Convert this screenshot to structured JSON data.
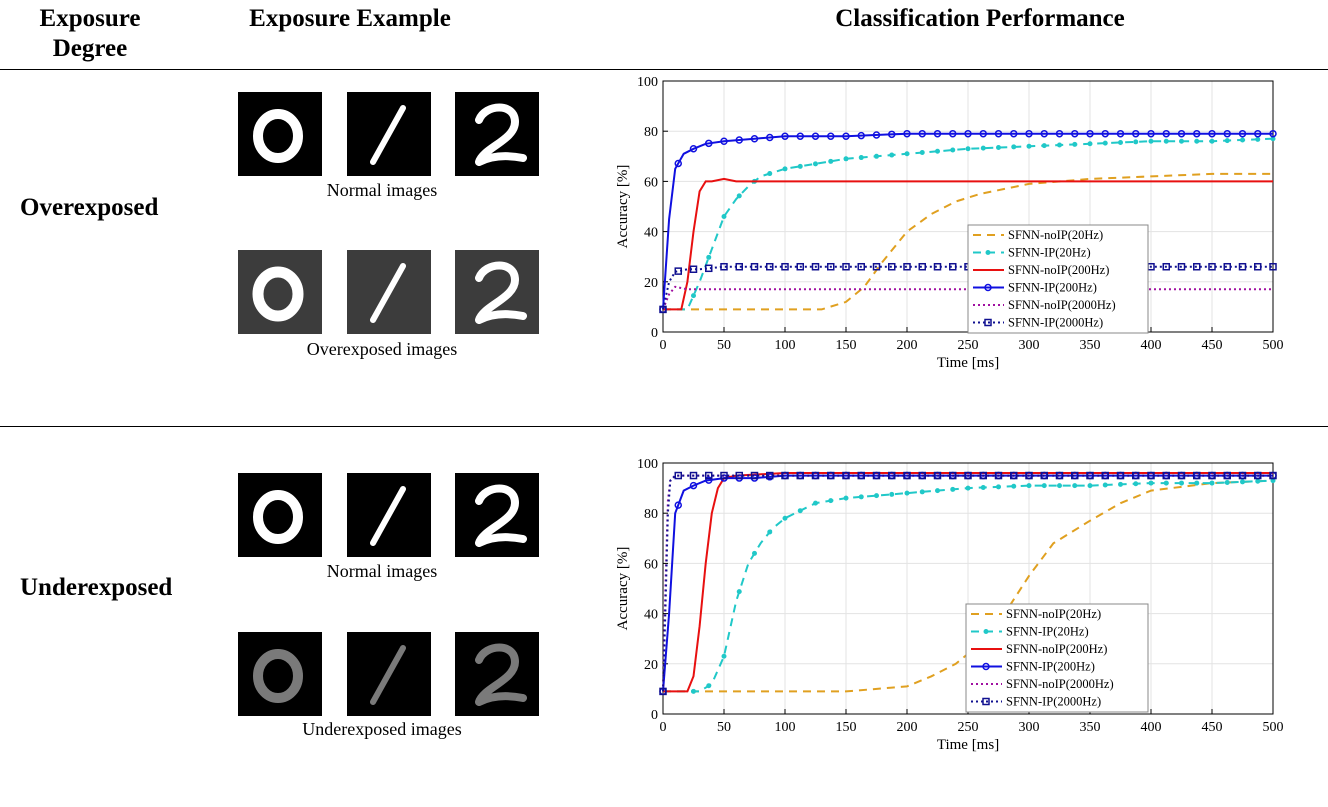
{
  "headers": {
    "col1": "Exposure Degree",
    "col1_line1": "Exposure",
    "col1_line2": "Degree",
    "col2": "Exposure Example",
    "col3": "Classification Performance"
  },
  "rows": [
    {
      "label": "Overexposed",
      "normal_caption": "Normal images",
      "exposed_caption": "Overexposed images",
      "digits": [
        "0",
        "1",
        "2"
      ]
    },
    {
      "label": "Underexposed",
      "normal_caption": "Normal images",
      "exposed_caption": "Underexposed images",
      "digits": [
        "0",
        "1",
        "2"
      ]
    }
  ],
  "chart_data": [
    {
      "type": "line",
      "xlabel": "Time [ms]",
      "ylabel": "Accuracy [%]",
      "xlim": [
        0,
        500
      ],
      "ylim": [
        0,
        100
      ],
      "xticks": [
        0,
        50,
        100,
        150,
        200,
        250,
        300,
        350,
        400,
        450,
        500
      ],
      "yticks": [
        0,
        20,
        40,
        60,
        80,
        100
      ],
      "grid": true,
      "legend_position": "center-right",
      "series": [
        {
          "name": "SFNN-noIP(20Hz)",
          "color": "#E0A020",
          "dash": "8,6",
          "marker": "none",
          "x": [
            0,
            20,
            50,
            100,
            130,
            150,
            165,
            180,
            200,
            220,
            240,
            260,
            280,
            300,
            350,
            400,
            450,
            500
          ],
          "y": [
            9,
            9,
            9,
            9,
            9,
            12,
            18,
            28,
            40,
            47,
            52,
            55,
            57,
            59,
            61,
            62,
            63,
            63
          ]
        },
        {
          "name": "SFNN-IP(20Hz)",
          "color": "#20C8C8",
          "dash": "8,6",
          "marker": "dot",
          "x": [
            0,
            20,
            30,
            40,
            50,
            60,
            70,
            80,
            100,
            125,
            150,
            200,
            250,
            300,
            350,
            400,
            450,
            500
          ],
          "y": [
            9,
            9,
            20,
            33,
            46,
            53,
            58,
            62,
            65,
            67,
            69,
            71,
            73,
            74,
            75,
            76,
            76,
            77
          ]
        },
        {
          "name": "SFNN-noIP(200Hz)",
          "color": "#E81010",
          "dash": "",
          "marker": "none",
          "x": [
            0,
            15,
            20,
            25,
            30,
            35,
            40,
            50,
            60,
            100,
            150,
            200,
            250,
            300,
            350,
            400,
            450,
            500
          ],
          "y": [
            9,
            9,
            20,
            40,
            56,
            60,
            60,
            61,
            60,
            60,
            60,
            60,
            60,
            60,
            60,
            60,
            60,
            60
          ]
        },
        {
          "name": "SFNN-IP(200Hz)",
          "color": "#1010E0",
          "dash": "",
          "marker": "circle",
          "x": [
            0,
            5,
            10,
            17,
            25,
            35,
            50,
            75,
            100,
            150,
            200,
            250,
            300,
            350,
            400,
            450,
            500
          ],
          "y": [
            9,
            45,
            65,
            71,
            73,
            75,
            76,
            77,
            78,
            78,
            79,
            79,
            79,
            79,
            79,
            79,
            79
          ]
        },
        {
          "name": "SFNN-noIP(2000Hz)",
          "color": "#A010A0",
          "dash": "2,3",
          "marker": "none",
          "x": [
            0,
            5,
            10,
            20,
            50,
            100,
            150,
            200,
            250,
            300,
            350,
            400,
            450,
            500
          ],
          "y": [
            9,
            15,
            18,
            17,
            17,
            17,
            17,
            17,
            17,
            17,
            17,
            17,
            17,
            17
          ]
        },
        {
          "name": "SFNN-IP(2000Hz)",
          "color": "#101090",
          "dash": "2,3",
          "marker": "square",
          "x": [
            0,
            5,
            10,
            20,
            30,
            50,
            100,
            150,
            200,
            250,
            300,
            350,
            400,
            450,
            500
          ],
          "y": [
            9,
            20,
            24,
            25,
            25,
            26,
            26,
            26,
            26,
            26,
            26,
            26,
            26,
            26,
            26
          ]
        }
      ]
    },
    {
      "type": "line",
      "xlabel": "Time [ms]",
      "ylabel": "Accuracy [%]",
      "xlim": [
        0,
        500
      ],
      "ylim": [
        0,
        100
      ],
      "xticks": [
        0,
        50,
        100,
        150,
        200,
        250,
        300,
        350,
        400,
        450,
        500
      ],
      "yticks": [
        0,
        20,
        40,
        60,
        80,
        100
      ],
      "grid": true,
      "legend_position": "bottom-right",
      "series": [
        {
          "name": "SFNN-noIP(20Hz)",
          "color": "#E0A020",
          "dash": "8,6",
          "marker": "none",
          "x": [
            0,
            20,
            50,
            100,
            150,
            200,
            220,
            240,
            260,
            280,
            300,
            320,
            350,
            375,
            400,
            450,
            500
          ],
          "y": [
            9,
            9,
            9,
            9,
            9,
            11,
            15,
            20,
            28,
            40,
            55,
            68,
            77,
            84,
            89,
            92,
            93
          ]
        },
        {
          "name": "SFNN-IP(20Hz)",
          "color": "#20C8C8",
          "dash": "8,6",
          "marker": "dot",
          "x": [
            0,
            20,
            30,
            40,
            50,
            60,
            70,
            80,
            90,
            100,
            125,
            150,
            200,
            250,
            300,
            350,
            400,
            450,
            500
          ],
          "y": [
            9,
            9,
            9,
            12,
            23,
            45,
            60,
            68,
            74,
            78,
            84,
            86,
            88,
            90,
            91,
            91,
            92,
            92,
            93
          ]
        },
        {
          "name": "SFNN-noIP(200Hz)",
          "color": "#E81010",
          "dash": "",
          "marker": "none",
          "x": [
            0,
            20,
            25,
            30,
            35,
            40,
            45,
            50,
            60,
            100,
            200,
            300,
            400,
            500
          ],
          "y": [
            9,
            9,
            15,
            35,
            60,
            80,
            90,
            94,
            95,
            96,
            96,
            96,
            96,
            96
          ]
        },
        {
          "name": "SFNN-IP(200Hz)",
          "color": "#1010E0",
          "dash": "",
          "marker": "circle",
          "x": [
            0,
            5,
            10,
            17,
            25,
            35,
            50,
            75,
            100,
            150,
            200,
            250,
            300,
            350,
            400,
            450,
            500
          ],
          "y": [
            9,
            40,
            80,
            89,
            91,
            93,
            94,
            94,
            95,
            95,
            95,
            95,
            95,
            95,
            95,
            95,
            95
          ]
        },
        {
          "name": "SFNN-noIP(2000Hz)",
          "color": "#A010A0",
          "dash": "2,3",
          "marker": "none",
          "x": [
            0,
            2,
            4,
            6,
            10,
            20,
            50,
            100,
            200,
            300,
            400,
            500
          ],
          "y": [
            9,
            50,
            85,
            93,
            95,
            95,
            95,
            95,
            95,
            95,
            95,
            95
          ]
        },
        {
          "name": "SFNN-IP(2000Hz)",
          "color": "#101090",
          "dash": "2,3",
          "marker": "square",
          "x": [
            0,
            2,
            4,
            6,
            10,
            20,
            50,
            100,
            150,
            200,
            250,
            300,
            350,
            400,
            450,
            500
          ],
          "y": [
            9,
            41,
            80,
            93,
            95,
            95,
            95,
            95,
            95,
            95,
            95,
            95,
            95,
            95,
            95,
            95
          ]
        }
      ]
    }
  ]
}
